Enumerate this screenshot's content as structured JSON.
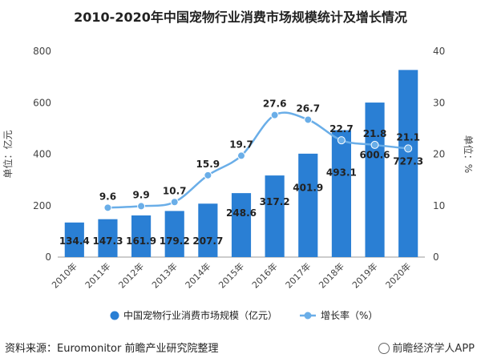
{
  "chart_data": {
    "type": "bar",
    "title": "2010-2020年中国宠物行业消费市场规模统计及增长情况",
    "categories": [
      "2010年",
      "2011年",
      "2012年",
      "2013年",
      "2014年",
      "2015年",
      "2016年",
      "2017年",
      "2018年",
      "2019年",
      "2020年"
    ],
    "series": [
      {
        "name": "中国宠物行业消费市场规模（亿元）",
        "type": "bar",
        "axis": "left",
        "color": "#2a7fd4",
        "values": [
          134.4,
          147.3,
          161.9,
          179.2,
          207.7,
          248.6,
          317.2,
          401.9,
          493.1,
          600.6,
          727.3
        ],
        "labels": [
          "134.4",
          "147.3",
          "161.9",
          "179.2",
          "207.7",
          "248.6",
          "317.2",
          "401.9",
          "493.1",
          "600.6",
          "727.3"
        ]
      },
      {
        "name": "增长率（%）",
        "type": "line",
        "axis": "right",
        "color": "#6aaee8",
        "values": [
          null,
          9.6,
          9.9,
          10.7,
          15.9,
          19.7,
          27.6,
          26.7,
          22.7,
          21.8,
          21.1
        ],
        "labels": [
          "",
          "9.6",
          "9.9",
          "10.7",
          "15.9",
          "19.7",
          "27.6",
          "26.7",
          "22.7",
          "21.8",
          "21.1"
        ]
      }
    ],
    "ylabel": "单位：亿元",
    "ylabel_right": "单位：%",
    "ylim": [
      0,
      800
    ],
    "yticks": [
      "0",
      "200",
      "400",
      "600",
      "800"
    ],
    "ylim_right": [
      0,
      40
    ],
    "yticks_right": [
      "0",
      "10",
      "20",
      "30",
      "40"
    ],
    "grid": false,
    "legend_position": "bottom"
  },
  "source": "资料来源：Euromonitor 前瞻产业研究院整理",
  "brand": "前瞻经济学人APP"
}
